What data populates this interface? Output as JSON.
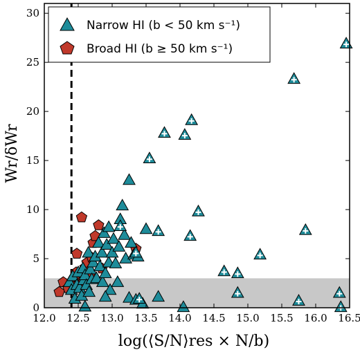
{
  "chart_data": {
    "type": "scatter",
    "xlabel": "log(⟨S/N⟩res × N/b)",
    "ylabel": "Wr/δWr",
    "xlim": [
      12.0,
      16.5
    ],
    "ylim": [
      0,
      31
    ],
    "xticks": [
      12.0,
      12.5,
      13.0,
      13.5,
      14.0,
      14.5,
      15.0,
      15.5,
      16.0,
      16.5
    ],
    "xtick_labels": [
      "12.0",
      "12.5",
      "13.0",
      "13.5",
      "14.0",
      "14.5",
      "15.0",
      "15.5",
      "16.0",
      "16.5"
    ],
    "yticks": [
      0,
      5,
      10,
      15,
      20,
      25,
      30
    ],
    "ytick_labels": [
      "0",
      "5",
      "10",
      "15",
      "20",
      "25",
      "30"
    ],
    "grid": false,
    "legend_position": "top-left",
    "shaded_band": {
      "y_from": 0,
      "y_to": 3,
      "color": "#c8c8c8"
    },
    "vertical_line": {
      "x": 12.4,
      "style": "dashed",
      "color": "#000000"
    },
    "series": [
      {
        "name": "Narrow HI (b < 50 km s⁻¹)",
        "marker": "triangle",
        "color": "#1e8c9a",
        "points": [
          [
            12.37,
            2.6
          ],
          [
            12.4,
            1.8
          ],
          [
            12.42,
            3.2
          ],
          [
            12.45,
            0.9
          ],
          [
            12.48,
            2.3
          ],
          [
            12.5,
            3.6
          ],
          [
            12.52,
            2.0
          ],
          [
            12.55,
            1.2
          ],
          [
            12.57,
            4.0
          ],
          [
            12.58,
            2.8
          ],
          [
            12.6,
            0.1
          ],
          [
            12.6,
            3.3
          ],
          [
            12.62,
            2.3
          ],
          [
            12.65,
            5.6
          ],
          [
            12.66,
            1.6
          ],
          [
            12.68,
            3.9
          ],
          [
            12.7,
            2.9
          ],
          [
            12.72,
            4.6
          ],
          [
            12.75,
            5.2
          ],
          [
            12.77,
            3.0
          ],
          [
            12.8,
            6.6
          ],
          [
            12.82,
            4.2
          ],
          [
            12.85,
            5.6
          ],
          [
            12.86,
            2.6
          ],
          [
            12.88,
            7.6
          ],
          [
            12.9,
            3.5
          ],
          [
            12.92,
            6.4
          ],
          [
            12.95,
            4.6
          ],
          [
            12.97,
            1.8
          ],
          [
            13.0,
            5.6
          ],
          [
            13.02,
            7.0
          ],
          [
            13.05,
            4.5
          ],
          [
            13.08,
            2.6
          ],
          [
            13.1,
            6.2
          ],
          [
            13.12,
            9.0
          ],
          [
            13.15,
            10.4
          ],
          [
            13.18,
            7.4
          ],
          [
            13.2,
            5.0
          ],
          [
            13.25,
            13.0
          ],
          [
            13.28,
            6.6
          ],
          [
            13.32,
            5.4
          ],
          [
            13.38,
            5.2
          ],
          [
            12.9,
            1.1
          ],
          [
            12.95,
            8.2
          ],
          [
            13.25,
            1.0
          ],
          [
            13.35,
            0.8
          ],
          [
            13.45,
            0.4
          ],
          [
            13.5,
            8.0
          ],
          [
            13.68,
            1.1
          ],
          [
            14.05,
            0.05
          ]
        ],
        "crossed_points": [
          [
            13.35,
            5.6
          ],
          [
            13.55,
            15.2
          ],
          [
            13.68,
            7.8
          ],
          [
            13.77,
            17.8
          ],
          [
            14.07,
            17.6
          ],
          [
            14.15,
            7.3
          ],
          [
            14.17,
            19.1
          ],
          [
            14.27,
            9.8
          ],
          [
            14.65,
            3.7
          ],
          [
            14.85,
            3.5
          ],
          [
            14.85,
            1.5
          ],
          [
            15.18,
            5.4
          ],
          [
            15.68,
            23.3
          ],
          [
            15.75,
            0.7
          ],
          [
            15.85,
            7.9
          ],
          [
            16.35,
            1.5
          ],
          [
            16.45,
            26.9
          ],
          [
            16.37,
            0.05
          ],
          [
            13.12,
            8.3
          ],
          [
            13.4,
            0.9
          ]
        ]
      },
      {
        "name": "Broad HI (b ≥ 50 km s⁻¹)",
        "marker": "pentagon",
        "color": "#c0392b",
        "points": [
          [
            12.22,
            1.6
          ],
          [
            12.28,
            2.6
          ],
          [
            12.35,
            2.0
          ],
          [
            12.42,
            2.7
          ],
          [
            12.45,
            3.1
          ],
          [
            12.47,
            3.6
          ],
          [
            12.48,
            5.5
          ],
          [
            12.52,
            2.5
          ],
          [
            12.55,
            9.2
          ],
          [
            12.6,
            4.1
          ],
          [
            12.63,
            4.6
          ],
          [
            12.67,
            3.3
          ],
          [
            12.7,
            5.1
          ],
          [
            12.72,
            6.6
          ],
          [
            12.75,
            7.3
          ],
          [
            12.8,
            8.4
          ],
          [
            12.85,
            4.0
          ],
          [
            13.35,
            6.0
          ]
        ]
      }
    ]
  }
}
